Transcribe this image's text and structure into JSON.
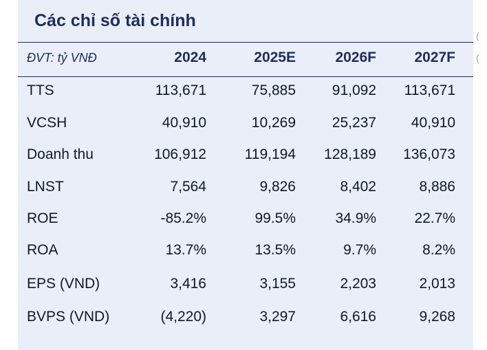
{
  "title": "Các chỉ số tài chính",
  "header": {
    "unit": "ĐVT: tỷ VNĐ",
    "years": [
      "2024",
      "2025E",
      "2026F",
      "2027F"
    ]
  },
  "rows": [
    {
      "label": "TTS",
      "values": [
        "113,671",
        "75,885",
        "91,092",
        "113,671"
      ]
    },
    {
      "label": "VCSH",
      "values": [
        "40,910",
        "10,269",
        "25,237",
        "40,910"
      ]
    },
    {
      "label": "Doanh thu",
      "values": [
        "106,912",
        "119,194",
        "128,189",
        "136,073"
      ]
    },
    {
      "label": "LNST",
      "values": [
        "7,564",
        "9,826",
        "8,402",
        "8,886"
      ]
    },
    {
      "label": "ROE",
      "values": [
        "-85.2%",
        "99.5%",
        "34.9%",
        "22.7%"
      ]
    },
    {
      "label": "ROA",
      "values": [
        "13.7%",
        "13.5%",
        "9.7%",
        "8.2%"
      ]
    },
    {
      "label": "EPS (VND)",
      "values": [
        "3,416",
        "3,155",
        "2,203",
        "2,013"
      ]
    },
    {
      "label": "BVPS (VND)",
      "values": [
        "(4,220)",
        "3,297",
        "6,616",
        "9,268"
      ]
    }
  ],
  "edge_marks": [
    "(",
    "("
  ]
}
